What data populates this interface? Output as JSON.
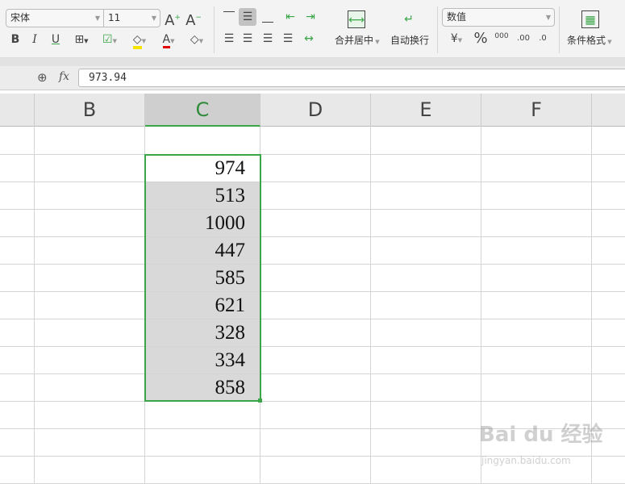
{
  "ribbon": {
    "font_name": "宋体",
    "font_size": "11",
    "merge_center": "合并居中",
    "wrap_text": "自动换行",
    "number_format": "数值",
    "conditional_format": "条件格式",
    "percent": "%",
    "thousands": "000",
    "inc_decimal": ".00",
    "dec_decimal": ".0",
    "font_color": "#e00000",
    "fill_color": "#f5e400",
    "accent": "#3aa648"
  },
  "formula_bar": {
    "fx_label": "fx",
    "value": "973.94"
  },
  "columns": [
    "B",
    "C",
    "D",
    "E",
    "F"
  ],
  "selected_column": "C",
  "cells_c": [
    "974",
    "513",
    "1000",
    "447",
    "585",
    "621",
    "328",
    "334",
    "858"
  ],
  "watermark": {
    "logo": "Bai du 经验",
    "url": "jingyan.baidu.com"
  }
}
